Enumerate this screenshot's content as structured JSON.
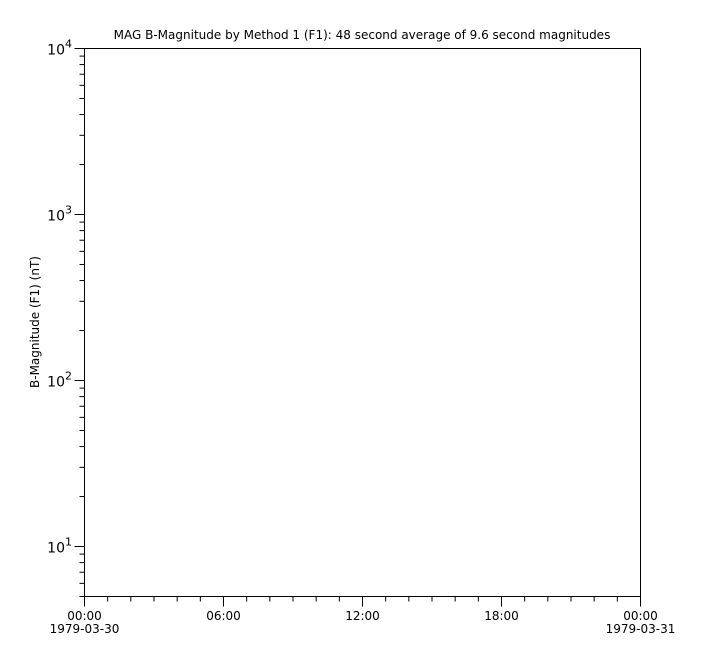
{
  "chart_data": {
    "type": "line",
    "title": "MAG  B-Magnitude by Method 1 (F1): 48 second average of 9.6 second magnitudes",
    "xlabel": "",
    "ylabel": "B-Magnitude (F1) (nT)",
    "y_scale": "log",
    "ylim": [
      5,
      10000
    ],
    "xlim": [
      "1979-03-30T00:00",
      "1979-03-31T00:00"
    ],
    "x_ticks": [
      {
        "hour": 0,
        "label": "00:00",
        "sublabel": "1979-03-30"
      },
      {
        "hour": 6,
        "label": "06:00",
        "sublabel": ""
      },
      {
        "hour": 12,
        "label": "12:00",
        "sublabel": ""
      },
      {
        "hour": 18,
        "label": "18:00",
        "sublabel": ""
      },
      {
        "hour": 24,
        "label": "00:00",
        "sublabel": "1979-03-31"
      }
    ],
    "x_minor_tick_hours": 1,
    "y_ticks": [
      {
        "value": 10,
        "base": "10",
        "exp": "1"
      },
      {
        "value": 100,
        "base": "10",
        "exp": "2"
      },
      {
        "value": 1000,
        "base": "10",
        "exp": "3"
      },
      {
        "value": 10000,
        "base": "10",
        "exp": "4"
      }
    ],
    "series": [],
    "grid": false
  }
}
